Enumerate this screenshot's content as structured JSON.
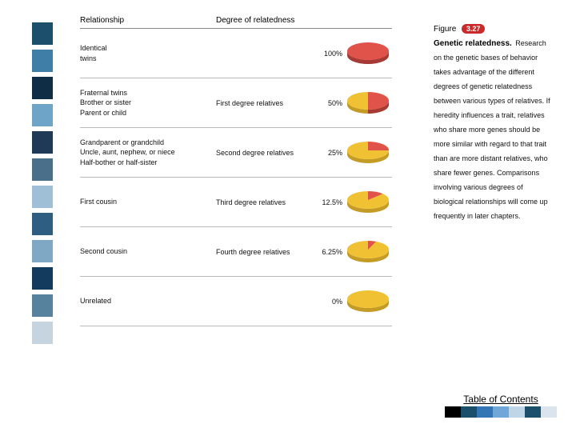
{
  "columns": {
    "relationship": "Relationship",
    "degree": "Degree of relatedness"
  },
  "pie_colors": {
    "red": "#e0534b",
    "yellow": "#f0c233",
    "red_dark": "#a63a34",
    "yellow_dark": "#c49b24"
  },
  "rows": [
    {
      "relationship": "Identical\ntwins",
      "degree": "",
      "pct": "100%",
      "pct_value": 100
    },
    {
      "relationship": "Fraternal twins\nBrother or sister\nParent or child",
      "degree": "First degree relatives",
      "pct": "50%",
      "pct_value": 50
    },
    {
      "relationship": "Grandparent or grandchild\nUncle, aunt, nephew, or niece\nHalf-bother or half-sister",
      "degree": "Second degree relatives",
      "pct": "25%",
      "pct_value": 25
    },
    {
      "relationship": "First cousin",
      "degree": "Third degree relatives",
      "pct": "12.5%",
      "pct_value": 12.5
    },
    {
      "relationship": "Second cousin",
      "degree": "Fourth degree relatives",
      "pct": "6.25%",
      "pct_value": 6.25
    },
    {
      "relationship": "Unrelated",
      "degree": "",
      "pct": "0%",
      "pct_value": 0
    }
  ],
  "sidebar": {
    "figure_word": "Figure",
    "figure_num": "3.27",
    "title": "Genetic relatedness.",
    "text": "Research on the genetic bases of behavior takes advantage of the different degrees of genetic relatedness between various types of relatives. If heredity influences a trait, relatives who share more genes should be more similar with regard to that trait than are more distant relatives, who share fewer genes. Comparisons involving various degrees of biological relationships will come up frequently in later chapters."
  },
  "left_stripe_colors": [
    "#1b4f6b",
    "#3f7ea6",
    "#0f2d44",
    "#6da4c7",
    "#1e3a57",
    "#4a6f8a",
    "#9fbfd6",
    "#2e5e82",
    "#7fa8c4",
    "#123b5e",
    "#57829e",
    "#c6d4df"
  ],
  "toc": {
    "label": "Table of Contents",
    "colors": [
      "#000000",
      "#1b4f6b",
      "#3375b5",
      "#6fa8d8",
      "#bfd6e8",
      "#1b4f6b",
      "#d9e4ec"
    ]
  }
}
